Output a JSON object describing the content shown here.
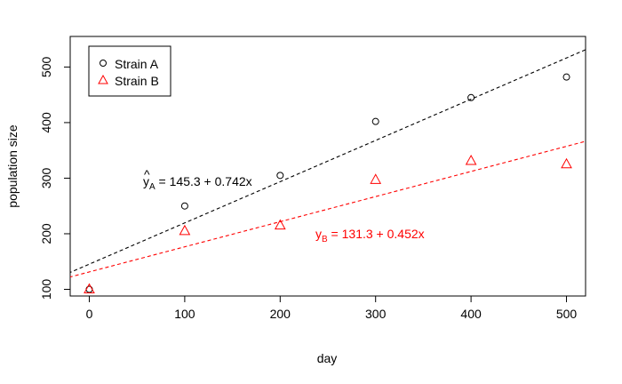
{
  "chart_data": {
    "type": "scatter",
    "title": "",
    "xlabel": "day",
    "ylabel": "population size",
    "xlim": [
      -20,
      520
    ],
    "ylim": [
      88,
      555
    ],
    "x_ticks": [
      0,
      100,
      200,
      300,
      400,
      500
    ],
    "y_ticks": [
      100,
      200,
      300,
      400,
      500
    ],
    "grid": false,
    "legend": {
      "placement": "top-left",
      "entries": [
        {
          "name": "Strain A",
          "marker": "circle",
          "color": "#000000"
        },
        {
          "name": "Strain B",
          "marker": "triangle",
          "color": "#ff0000"
        }
      ]
    },
    "series": [
      {
        "name": "Strain A",
        "color": "#000000",
        "marker": "circle",
        "x": [
          0,
          100,
          200,
          300,
          400,
          500
        ],
        "y": [
          100,
          250,
          305,
          402,
          445,
          482
        ],
        "fit": {
          "intercept": 145.3,
          "slope": 0.742,
          "style": "dashed",
          "equation_hat": "^",
          "equation_y": "y",
          "equation_sub": "A",
          "equation_rest": " = 145.3 + 0.742x"
        }
      },
      {
        "name": "Strain B",
        "color": "#ff0000",
        "marker": "triangle",
        "x": [
          0,
          100,
          200,
          300,
          400,
          500
        ],
        "y": [
          100,
          205,
          215,
          297,
          331,
          325
        ],
        "fit": {
          "intercept": 131.3,
          "slope": 0.452,
          "style": "dashed",
          "equation_y": "y",
          "equation_sub": "B",
          "equation_rest": " = 131.3 + 0.452x"
        }
      }
    ]
  }
}
